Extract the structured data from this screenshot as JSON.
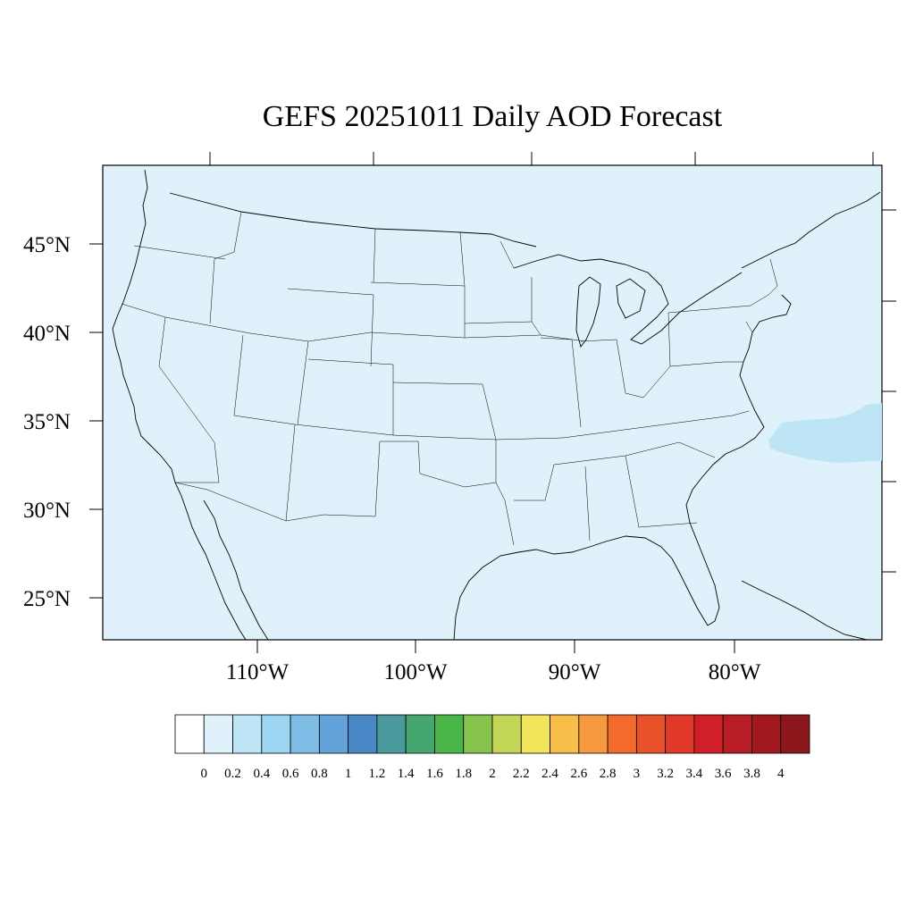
{
  "title": "GEFS 20251011 Daily AOD Forecast",
  "map": {
    "background_color": "#dff2fb",
    "region": "Contiguous United States",
    "lat_labels": [
      "45°N",
      "40°N",
      "35°N",
      "30°N",
      "25°N"
    ],
    "lon_labels": [
      "110°W",
      "100°W",
      "90°W",
      "80°W"
    ],
    "features": [
      {
        "name": "atlantic-aod-patch",
        "level": "0.2-0.4",
        "color": "#bde5f6"
      }
    ]
  },
  "colorbar": {
    "labels": [
      "0",
      "0.2",
      "0.4",
      "0.6",
      "0.8",
      "1",
      "1.2",
      "1.4",
      "1.6",
      "1.8",
      "2",
      "2.2",
      "2.4",
      "2.6",
      "2.8",
      "3",
      "3.2",
      "3.4",
      "3.6",
      "3.8",
      "4"
    ],
    "colors": [
      "#ffffff",
      "#dff2fb",
      "#bde5f6",
      "#9dd6f2",
      "#80bde6",
      "#64a3da",
      "#4a87c7",
      "#4a9a9e",
      "#46a66f",
      "#4ab548",
      "#86c44e",
      "#c3d657",
      "#f3e55b",
      "#f7bf49",
      "#f59a3e",
      "#f26a2c",
      "#e9512b",
      "#e0392a",
      "#d11f2a",
      "#b81c25",
      "#a1191f",
      "#8b171c"
    ]
  }
}
